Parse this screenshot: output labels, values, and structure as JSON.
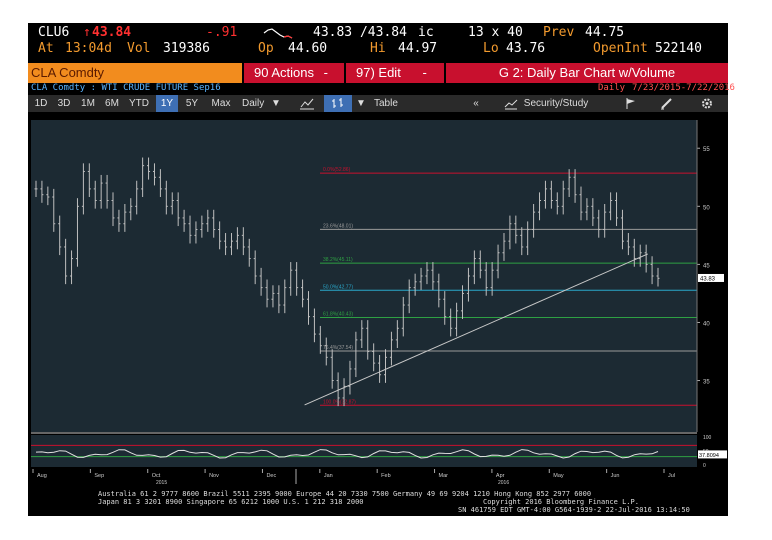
{
  "quote": {
    "ticker": "CLU6",
    "arrow": "↑",
    "last": "43.84",
    "change": "-.91",
    "bid_ask": "43.83 /43.84",
    "bid_ask_suffix": "ic",
    "size": "13 x 40",
    "prev_label": "Prev",
    "prev": "44.75",
    "at_label": "At",
    "time": "13:04d",
    "vol_label": "Vol",
    "volume": "319386",
    "open_label": "Op",
    "open": "44.60",
    "high_label": "Hi",
    "high": "44.97",
    "low_label": "Lo",
    "low": "43.76",
    "openint_label": "OpenInt",
    "openint": "522140"
  },
  "function_bar": {
    "security": "CLA Comdty",
    "actions_label": "90 Actions",
    "edit_label": "97) Edit",
    "title": "G 2: Daily Bar Chart w/Volume",
    "description": "CLA Comdty : WTI CRUDE FUTURE  Sep16",
    "period_label": "Daily",
    "date_range": "7/23/2015-7/22/2016"
  },
  "toolbar": {
    "ranges": [
      "1D",
      "3D",
      "1M",
      "6M",
      "YTD",
      "1Y",
      "5Y",
      "Max"
    ],
    "selected_range": "1Y",
    "frequency": "Daily",
    "table_label": "Table",
    "back_label": "«",
    "security_study_label": "Security/Study"
  },
  "chart_data": {
    "type": "bar",
    "x_ticks": [
      "Aug",
      "Sep",
      "Oct",
      "Nov",
      "Dec",
      "Jan",
      "Feb",
      "Mar",
      "Apr",
      "May",
      "Jun",
      "Jul"
    ],
    "year_labels": [
      "2015",
      "2016"
    ],
    "y_ticks": [
      35,
      40,
      45,
      50,
      55
    ],
    "ylim": [
      31,
      57
    ],
    "last_price_tag": "43.83",
    "fib_levels": [
      {
        "label": "0.0%(52.86)",
        "value": 52.86,
        "color": "#c8102e"
      },
      {
        "label": "23.6%(48.01)",
        "value": 48.01,
        "color": "#9a9a9a"
      },
      {
        "label": "38.2%(45.11)",
        "value": 45.11,
        "color": "#2ea043"
      },
      {
        "label": "50.0%(42.77)",
        "value": 42.77,
        "color": "#2aa7c9"
      },
      {
        "label": "61.8%(40.43)",
        "value": 40.43,
        "color": "#2ea043"
      },
      {
        "label": "76.4%(37.54)",
        "value": 37.54,
        "color": "#9a9a9a"
      },
      {
        "label": "100.0%(32.87)",
        "value": 32.87,
        "color": "#c8102e"
      }
    ],
    "trendline": {
      "from": [
        0.41,
        32.9
      ],
      "to": [
        0.93,
        45.9
      ]
    },
    "closes": [
      51.5,
      51.0,
      50.8,
      48.5,
      46.5,
      44.0,
      45.5,
      50.0,
      53.0,
      51.5,
      50.5,
      52.0,
      50.5,
      49.0,
      48.5,
      49.5,
      50.0,
      51.5,
      53.5,
      53.0,
      52.5,
      51.5,
      50.0,
      50.5,
      49.0,
      48.5,
      47.5,
      48.0,
      48.5,
      49.0,
      48.0,
      47.0,
      46.5,
      47.0,
      47.5,
      46.5,
      45.5,
      44.0,
      43.0,
      42.0,
      42.5,
      41.5,
      43.0,
      44.5,
      43.0,
      42.0,
      40.5,
      39.0,
      38.0,
      37.0,
      35.0,
      33.5,
      34.5,
      36.0,
      38.5,
      39.5,
      37.5,
      36.5,
      35.5,
      37.0,
      38.5,
      39.5,
      41.5,
      43.0,
      43.5,
      44.0,
      44.5,
      43.5,
      42.0,
      40.5,
      39.5,
      41.0,
      42.5,
      44.0,
      45.5,
      44.5,
      43.0,
      44.5,
      46.0,
      47.0,
      48.5,
      47.5,
      46.5,
      48.0,
      49.5,
      50.5,
      51.5,
      50.5,
      50.0,
      51.5,
      52.5,
      51.0,
      49.5,
      50.0,
      49.0,
      48.0,
      49.5,
      50.5,
      49.0,
      47.0,
      46.5,
      45.5,
      46.0,
      45.0,
      44.0,
      43.8
    ],
    "oscillator": {
      "ylim": [
        0,
        100
      ],
      "ticks": [
        0,
        50,
        100
      ],
      "value_tag": "37.8094",
      "band_upper": 70,
      "band_lower": 30
    }
  },
  "footer": {
    "line1": "Australia 61 2 9777 8600 Brazil 5511 2395 9000 Europe 44 20 7330 7500 Germany 49 69 9204 1210 Hong Kong 852 2977 6000",
    "line2_left": "Japan 81 3 3201 8900        Singapore 65 6212 1000       U.S. 1 212 318 2000",
    "line2_right": "Copyright 2016 Bloomberg Finance L.P.",
    "line3": "SN 461759 EDT  GMT-4:00 G564-1939-2 22-Jul-2016 13:14:50"
  }
}
